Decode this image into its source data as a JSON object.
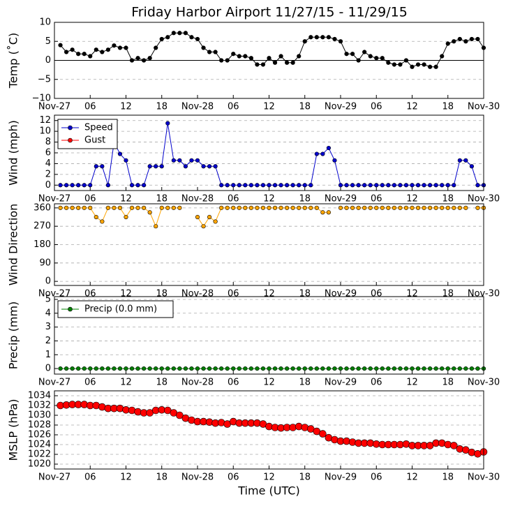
{
  "chart_data": [
    {
      "type": "line",
      "title": "Friday Harbor Airport 11/27/15 - 11/29/15",
      "ylabel": "Temp (˚C)",
      "x": [
        1,
        2,
        3,
        4,
        5,
        6,
        7,
        8,
        9,
        10,
        11,
        12,
        13,
        14,
        15,
        16,
        17,
        18,
        19,
        20,
        21,
        22,
        23,
        24,
        25,
        26,
        27,
        28,
        29,
        30,
        31,
        32,
        33,
        34,
        35,
        36,
        37,
        38,
        39,
        40,
        41,
        42,
        43,
        44,
        45,
        46,
        47,
        48,
        49,
        50,
        51,
        52,
        53,
        54,
        55,
        56,
        57,
        58,
        59,
        60,
        61,
        62,
        63,
        64,
        65,
        66,
        67,
        68,
        69,
        70,
        71,
        72
      ],
      "series": [
        {
          "name": "Temp",
          "color": "#000000",
          "values": [
            4,
            2.2,
            2.8,
            1.7,
            1.7,
            1.1,
            2.8,
            2.2,
            2.8,
            3.9,
            3.3,
            3.3,
            0,
            0.6,
            0,
            0.6,
            3.3,
            5.6,
            6.1,
            7.2,
            7.2,
            7.2,
            6.1,
            5.6,
            3.3,
            2.2,
            2.2,
            0,
            0,
            1.7,
            1.1,
            1.1,
            0.6,
            -1.1,
            -1.1,
            0.6,
            -0.6,
            1.1,
            -0.6,
            -0.6,
            1.1,
            5,
            6.1,
            6.1,
            6.1,
            6.1,
            5.6,
            5,
            1.7,
            1.7,
            0,
            2.2,
            1.1,
            0.6,
            0.6,
            -0.6,
            -1.1,
            -1.1,
            0,
            -1.7,
            -1.1,
            -1.1,
            -1.7,
            -1.7,
            1.1,
            4.4,
            5,
            5.6,
            5,
            5.6,
            5.6,
            3.3
          ]
        }
      ],
      "hline": 0,
      "xlim": [
        0,
        72
      ],
      "xticks": [
        {
          "value": 0,
          "label": "Nov-27"
        },
        {
          "value": 6,
          "label": "06"
        },
        {
          "value": 12,
          "label": "12"
        },
        {
          "value": 18,
          "label": "18"
        },
        {
          "value": 24,
          "label": "Nov-28"
        },
        {
          "value": 30,
          "label": "06"
        },
        {
          "value": 36,
          "label": "12"
        },
        {
          "value": 42,
          "label": "18"
        },
        {
          "value": 48,
          "label": "Nov-29"
        },
        {
          "value": 54,
          "label": "06"
        },
        {
          "value": 60,
          "label": "12"
        },
        {
          "value": 66,
          "label": "18"
        },
        {
          "value": 72,
          "label": "Nov-30"
        }
      ],
      "ylim": [
        -10,
        10
      ],
      "yticks": [
        {
          "value": -10,
          "label": "−10"
        },
        {
          "value": -5,
          "label": "−5"
        },
        0,
        5,
        10
      ],
      "grid": true
    },
    {
      "type": "line",
      "ylabel": "Wind (mph)",
      "x": [
        1,
        2,
        3,
        4,
        5,
        6,
        7,
        8,
        9,
        10,
        11,
        12,
        13,
        14,
        15,
        16,
        17,
        18,
        19,
        20,
        21,
        22,
        23,
        24,
        25,
        26,
        27,
        28,
        29,
        30,
        31,
        32,
        33,
        34,
        35,
        36,
        37,
        38,
        39,
        40,
        41,
        42,
        43,
        44,
        45,
        46,
        47,
        48,
        49,
        50,
        51,
        52,
        53,
        54,
        55,
        56,
        57,
        58,
        59,
        60,
        61,
        62,
        63,
        64,
        65,
        66,
        67,
        68,
        69,
        70,
        71,
        72
      ],
      "series": [
        {
          "name": "Speed",
          "color": "#0000cc",
          "values": [
            0,
            0,
            0,
            0,
            0,
            0,
            3.5,
            3.5,
            0,
            8,
            5.8,
            4.6,
            0,
            0,
            0,
            3.5,
            3.5,
            3.5,
            11.5,
            4.6,
            4.6,
            3.5,
            4.6,
            4.6,
            3.5,
            3.5,
            3.5,
            0,
            0,
            0,
            0,
            0,
            0,
            0,
            0,
            0,
            0,
            0,
            0,
            0,
            0,
            0,
            0,
            5.8,
            5.8,
            6.9,
            4.6,
            0,
            0,
            0,
            0,
            0,
            0,
            0,
            0,
            0,
            0,
            0,
            0,
            0,
            0,
            0,
            0,
            0,
            0,
            0,
            0,
            4.6,
            4.6,
            3.5,
            0,
            0
          ]
        },
        {
          "name": "Gust",
          "color": "#ff0000",
          "values": [
            null,
            null,
            null,
            null,
            null,
            null,
            null,
            null,
            null,
            null,
            null,
            null,
            null,
            null,
            null,
            null,
            null,
            null,
            null,
            null,
            null,
            null,
            null,
            null,
            null,
            null,
            null,
            null,
            null,
            null,
            null,
            null,
            null,
            null,
            null,
            null,
            null,
            null,
            null,
            null,
            null,
            null,
            null,
            null,
            null,
            null,
            null,
            null,
            null,
            null,
            null,
            null,
            null,
            null,
            null,
            null,
            null,
            null,
            null,
            null,
            null,
            null,
            null,
            null,
            null,
            null,
            null,
            null,
            null,
            null,
            null,
            null
          ]
        }
      ],
      "legend": "upper left",
      "xlim": [
        0,
        72
      ],
      "xticks": [
        {
          "value": 0,
          "label": "Nov-27"
        },
        {
          "value": 6,
          "label": "06"
        },
        {
          "value": 12,
          "label": "12"
        },
        {
          "value": 18,
          "label": "18"
        },
        {
          "value": 24,
          "label": "Nov-28"
        },
        {
          "value": 30,
          "label": "06"
        },
        {
          "value": 36,
          "label": "12"
        },
        {
          "value": 42,
          "label": "18"
        },
        {
          "value": 48,
          "label": "Nov-29"
        },
        {
          "value": 54,
          "label": "06"
        },
        {
          "value": 60,
          "label": "12"
        },
        {
          "value": 66,
          "label": "18"
        },
        {
          "value": 72,
          "label": "Nov-30"
        }
      ],
      "ylim": [
        -1,
        13
      ],
      "yticks": [
        0,
        2,
        4,
        6,
        8,
        10,
        12
      ],
      "grid": true
    },
    {
      "type": "line",
      "ylabel": "Wind Direction",
      "x": [
        1,
        2,
        3,
        4,
        5,
        6,
        7,
        8,
        9,
        10,
        11,
        12,
        13,
        14,
        15,
        16,
        17,
        18,
        19,
        20,
        21,
        22,
        23,
        24,
        25,
        26,
        27,
        28,
        29,
        30,
        31,
        32,
        33,
        34,
        35,
        36,
        37,
        38,
        39,
        40,
        41,
        42,
        43,
        44,
        45,
        46,
        47,
        48,
        49,
        50,
        51,
        52,
        53,
        54,
        55,
        56,
        57,
        58,
        59,
        60,
        61,
        62,
        63,
        64,
        65,
        66,
        67,
        68,
        69,
        70,
        71,
        72
      ],
      "series": [
        {
          "name": "Direction",
          "color": "#ffa500",
          "values": [
            360,
            360,
            360,
            360,
            360,
            360,
            315,
            293,
            360,
            360,
            360,
            315,
            360,
            360,
            360,
            338,
            270,
            360,
            360,
            360,
            360,
            null,
            null,
            315,
            270,
            315,
            293,
            360,
            360,
            360,
            360,
            360,
            360,
            360,
            360,
            360,
            360,
            360,
            360,
            360,
            360,
            360,
            360,
            360,
            338,
            338,
            null,
            360,
            360,
            360,
            360,
            360,
            360,
            360,
            360,
            360,
            360,
            360,
            360,
            360,
            360,
            360,
            360,
            360,
            360,
            360,
            360,
            360,
            360,
            null,
            360,
            360
          ]
        }
      ],
      "xlim": [
        0,
        72
      ],
      "xticks": [
        {
          "value": 0,
          "label": "Nov-27"
        },
        {
          "value": 6,
          "label": "06"
        },
        {
          "value": 12,
          "label": "12"
        },
        {
          "value": 18,
          "label": "18"
        },
        {
          "value": 24,
          "label": "Nov-28"
        },
        {
          "value": 30,
          "label": "06"
        },
        {
          "value": 36,
          "label": "12"
        },
        {
          "value": 42,
          "label": "18"
        },
        {
          "value": 48,
          "label": "Nov-29"
        },
        {
          "value": 54,
          "label": "06"
        },
        {
          "value": 60,
          "label": "12"
        },
        {
          "value": 66,
          "label": "18"
        },
        {
          "value": 72,
          "label": "Nov-30"
        }
      ],
      "ylim": [
        -20,
        380
      ],
      "yticks": [
        0,
        90,
        180,
        270,
        360
      ],
      "grid": true
    },
    {
      "type": "line",
      "ylabel": "Precip (mm)",
      "x": [
        1,
        2,
        3,
        4,
        5,
        6,
        7,
        8,
        9,
        10,
        11,
        12,
        13,
        14,
        15,
        16,
        17,
        18,
        19,
        20,
        21,
        22,
        23,
        24,
        25,
        26,
        27,
        28,
        29,
        30,
        31,
        32,
        33,
        34,
        35,
        36,
        37,
        38,
        39,
        40,
        41,
        42,
        43,
        44,
        45,
        46,
        47,
        48,
        49,
        50,
        51,
        52,
        53,
        54,
        55,
        56,
        57,
        58,
        59,
        60,
        61,
        62,
        63,
        64,
        65,
        66,
        67,
        68,
        69,
        70,
        71,
        72
      ],
      "series": [
        {
          "name": "Precip (0.0 mm)",
          "color": "#008000",
          "values": [
            0,
            0,
            0,
            0,
            0,
            0,
            0,
            0,
            0,
            0,
            0,
            0,
            0,
            0,
            0,
            0,
            0,
            0,
            0,
            0,
            0,
            0,
            0,
            0,
            0,
            0,
            0,
            0,
            0,
            0,
            0,
            0,
            0,
            0,
            0,
            0,
            0,
            0,
            0,
            0,
            0,
            0,
            0,
            0,
            0,
            0,
            0,
            0,
            0,
            0,
            0,
            0,
            0,
            0,
            0,
            0,
            0,
            0,
            0,
            0,
            0,
            0,
            0,
            0,
            0,
            0,
            0,
            0,
            0,
            0,
            0,
            0
          ]
        }
      ],
      "legend": "upper left",
      "xlim": [
        0,
        72
      ],
      "xticks": [
        {
          "value": 0,
          "label": "Nov-27"
        },
        {
          "value": 6,
          "label": "06"
        },
        {
          "value": 12,
          "label": "12"
        },
        {
          "value": 18,
          "label": "18"
        },
        {
          "value": 24,
          "label": "Nov-28"
        },
        {
          "value": 30,
          "label": "06"
        },
        {
          "value": 36,
          "label": "12"
        },
        {
          "value": 42,
          "label": "18"
        },
        {
          "value": 48,
          "label": "Nov-29"
        },
        {
          "value": 54,
          "label": "06"
        },
        {
          "value": 60,
          "label": "12"
        },
        {
          "value": 66,
          "label": "18"
        },
        {
          "value": 72,
          "label": "Nov-30"
        }
      ],
      "ylim": [
        -0.4,
        5.2
      ],
      "yticks": [
        0,
        1,
        2,
        3,
        4,
        5
      ],
      "grid": true
    },
    {
      "type": "line",
      "ylabel": "MSLP (hPa)",
      "xlabel": "Time (UTC)",
      "x": [
        1,
        2,
        3,
        4,
        5,
        6,
        7,
        8,
        9,
        10,
        11,
        12,
        13,
        14,
        15,
        16,
        17,
        18,
        19,
        20,
        21,
        22,
        23,
        24,
        25,
        26,
        27,
        28,
        29,
        30,
        31,
        32,
        33,
        34,
        35,
        36,
        37,
        38,
        39,
        40,
        41,
        42,
        43,
        44,
        45,
        46,
        47,
        48,
        49,
        50,
        51,
        52,
        53,
        54,
        55,
        56,
        57,
        58,
        59,
        60,
        61,
        62,
        63,
        64,
        65,
        66,
        67,
        68,
        69,
        70,
        71,
        72
      ],
      "series": [
        {
          "name": "MSLP",
          "color": "#ff0000",
          "values": [
            1032.0,
            1032.1,
            1032.2,
            1032.2,
            1032.2,
            1032.0,
            1032.0,
            1031.7,
            1031.4,
            1031.4,
            1031.4,
            1031.1,
            1031.0,
            1030.7,
            1030.5,
            1030.5,
            1031.0,
            1031.1,
            1031.0,
            1030.5,
            1030.0,
            1029.4,
            1029.0,
            1028.7,
            1028.7,
            1028.6,
            1028.4,
            1028.5,
            1028.2,
            1028.7,
            1028.4,
            1028.4,
            1028.4,
            1028.4,
            1028.2,
            1027.7,
            1027.5,
            1027.4,
            1027.5,
            1027.5,
            1027.7,
            1027.5,
            1027.2,
            1026.7,
            1026.2,
            1025.4,
            1025.0,
            1024.7,
            1024.7,
            1024.5,
            1024.3,
            1024.3,
            1024.3,
            1024.1,
            1024.0,
            1024.0,
            1024.0,
            1024.0,
            1024.1,
            1023.8,
            1023.8,
            1023.8,
            1023.8,
            1024.3,
            1024.3,
            1024.0,
            1023.8,
            1023.1,
            1022.9,
            1022.4,
            1022.1,
            1022.5
          ]
        }
      ],
      "xlim": [
        0,
        72
      ],
      "xticks": [
        {
          "value": 0,
          "label": "Nov-27"
        },
        {
          "value": 6,
          "label": "06"
        },
        {
          "value": 12,
          "label": "12"
        },
        {
          "value": 18,
          "label": "18"
        },
        {
          "value": 24,
          "label": "Nov-28"
        },
        {
          "value": 30,
          "label": "06"
        },
        {
          "value": 36,
          "label": "12"
        },
        {
          "value": 42,
          "label": "18"
        },
        {
          "value": 48,
          "label": "Nov-29"
        },
        {
          "value": 54,
          "label": "06"
        },
        {
          "value": 60,
          "label": "12"
        },
        {
          "value": 66,
          "label": "18"
        },
        {
          "value": 72,
          "label": "Nov-30"
        }
      ],
      "ylim": [
        1019,
        1035
      ],
      "yticks": [
        1020,
        1022,
        1024,
        1026,
        1028,
        1030,
        1032,
        1034
      ],
      "grid": true
    }
  ]
}
